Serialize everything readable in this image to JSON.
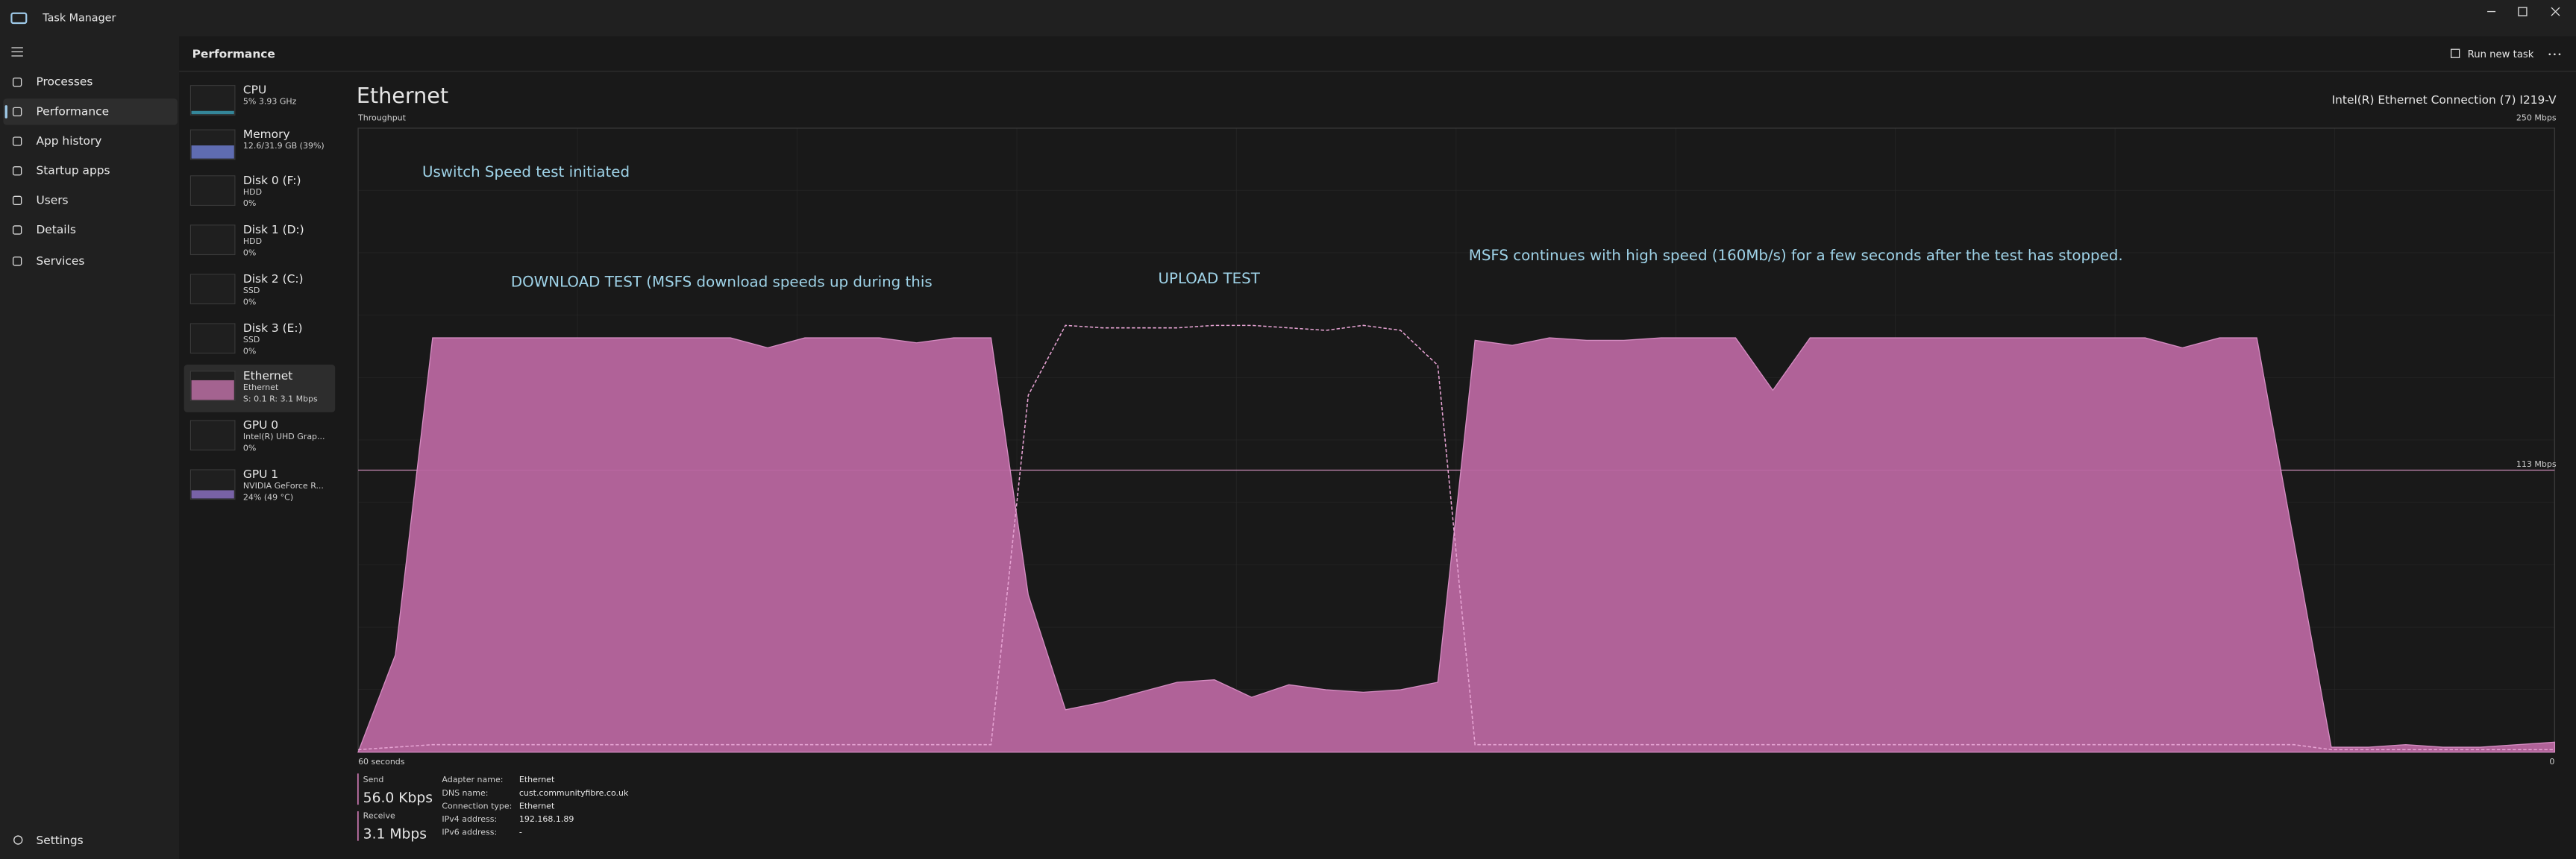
{
  "window": {
    "title": "Task Manager"
  },
  "nav": {
    "items": [
      "Processes",
      "Performance",
      "App history",
      "Startup apps",
      "Users",
      "Details",
      "Services"
    ],
    "settings": "Settings"
  },
  "header": {
    "title": "Performance",
    "run_new_task": "Run new task"
  },
  "devices": [
    {
      "name": "CPU",
      "lines": [
        "5% 3.93 GHz"
      ]
    },
    {
      "name": "Memory",
      "lines": [
        "12.6/31.9 GB (39%)"
      ]
    },
    {
      "name": "Disk 0 (F:)",
      "lines": [
        "HDD",
        "0%"
      ]
    },
    {
      "name": "Disk 1 (D:)",
      "lines": [
        "HDD",
        "0%"
      ]
    },
    {
      "name": "Disk 2 (C:)",
      "lines": [
        "SSD",
        "0%"
      ]
    },
    {
      "name": "Disk 3 (E:)",
      "lines": [
        "SSD",
        "0%"
      ]
    },
    {
      "name": "Ethernet",
      "lines": [
        "Ethernet",
        "S: 0.1 R: 3.1 Mbps"
      ]
    },
    {
      "name": "GPU 0",
      "lines": [
        "Intel(R) UHD Grap...",
        "0%"
      ]
    },
    {
      "name": "GPU 1",
      "lines": [
        "NVIDIA GeForce R...",
        "24% (49 °C)"
      ]
    }
  ],
  "panel": {
    "title": "Ethernet",
    "subtitle": "Throughput",
    "adapter": "Intel(R) Ethernet Connection (7) I219-V"
  },
  "chart_data": {
    "type": "area",
    "ylim": [
      0,
      250
    ],
    "yticks": [
      {
        "value": 250,
        "label": "250 Mbps"
      },
      {
        "value": 113,
        "label": "113 Mbps"
      }
    ],
    "xlim": [
      60,
      0
    ],
    "xticks": [
      {
        "value": 60,
        "label": "60 seconds"
      },
      0
    ],
    "series": [
      {
        "name": "Receive",
        "color": "#b8669f",
        "values": [
          0,
          39,
          166,
          166,
          166,
          166,
          166,
          166,
          166,
          166,
          166,
          162,
          166,
          166,
          166,
          164,
          166,
          166,
          63,
          17,
          20,
          24,
          28,
          29,
          22,
          27,
          25,
          24,
          25,
          28,
          165,
          163,
          166,
          165,
          165,
          166,
          166,
          166,
          145,
          166,
          166,
          166,
          166,
          166,
          166,
          166,
          166,
          166,
          166,
          162,
          166,
          166,
          84,
          2,
          2,
          3,
          2,
          2,
          3,
          4
        ]
      },
      {
        "name": "Send",
        "color": "#e6a3d3",
        "values": [
          1,
          2,
          3,
          3,
          3,
          3,
          3,
          3,
          3,
          3,
          3,
          3,
          3,
          3,
          3,
          3,
          3,
          3,
          143,
          171,
          170,
          170,
          170,
          171,
          171,
          170,
          169,
          171,
          169,
          155,
          3,
          3,
          3,
          3,
          3,
          3,
          3,
          3,
          3,
          3,
          3,
          3,
          3,
          3,
          3,
          3,
          3,
          3,
          3,
          3,
          3,
          3,
          3,
          1,
          1,
          1,
          1,
          1,
          1,
          1
        ]
      }
    ],
    "annotations": [
      "Uswitch Speed test initiated",
      "DOWNLOAD TEST (MSFS download speeds up during this",
      "UPLOAD TEST",
      "MSFS continues with high speed (160Mb/s) for a few seconds after the test has stopped."
    ]
  },
  "stats": {
    "send_value": "56.0 Kbps",
    "receive_value": "3.1 Mbps"
  },
  "details": [
    [
      "Adapter name:",
      "Ethernet"
    ],
    [
      "DNS name:",
      "cust.communityfibre.co.uk"
    ],
    [
      "Connection type:",
      "Ethernet"
    ],
    [
      "IPv4 address:",
      "192.168.1.89"
    ],
    [
      "IPv6 address:",
      "-"
    ]
  ]
}
